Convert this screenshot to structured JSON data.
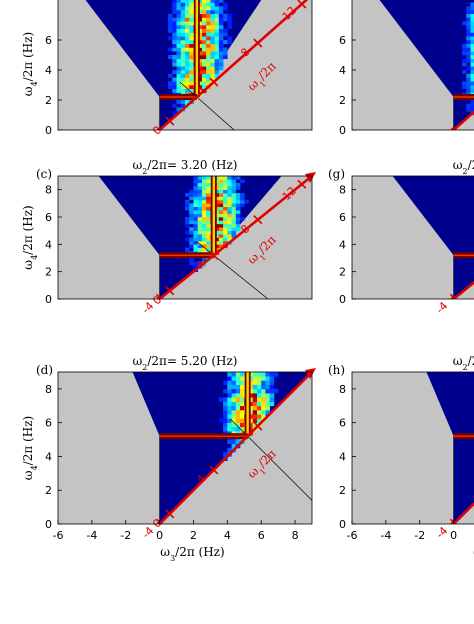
{
  "chart_data": [
    {
      "type": "heatmap",
      "panel": "",
      "title": "",
      "ylabel": "ω4/2π (Hz)",
      "xlabel": "",
      "x_ticks": [],
      "y_ticks": [
        "0",
        "2",
        "4",
        "6"
      ],
      "xlim": [
        -6,
        9
      ],
      "ylim": [
        0,
        9
      ],
      "diag_ticks": [
        "0",
        "4",
        "8",
        "12"
      ],
      "diag_label": "ω1/2π",
      "peak_omega2": 2.2,
      "visible_fraction": [
        0.0,
        0.6
      ]
    },
    {
      "type": "heatmap",
      "panel": "(c)",
      "title": "ω2/2π= 3.20 (Hz)",
      "ylabel": "ω4/2π (Hz)",
      "xlabel": "",
      "x_ticks": [],
      "y_ticks": [
        "0",
        "2",
        "4",
        "6",
        "8"
      ],
      "xlim": [
        -6,
        9
      ],
      "ylim": [
        0,
        9
      ],
      "diag_ticks": [
        "-4",
        "0",
        "4",
        "8",
        "12"
      ],
      "diag_label": "ω1/2π",
      "peak_omega2": 3.2
    },
    {
      "type": "heatmap",
      "panel": "(d)",
      "title": "ω2/2π= 5.20 (Hz)",
      "ylabel": "ω4/2π (Hz)",
      "xlabel": "ω3/2π (Hz)",
      "x_ticks": [
        "-6",
        "-4",
        "-2",
        "0",
        "2",
        "4",
        "6",
        "8"
      ],
      "y_ticks": [
        "0",
        "2",
        "4",
        "6",
        "8"
      ],
      "xlim": [
        -6,
        9
      ],
      "ylim": [
        0,
        9
      ],
      "diag_ticks": [
        "-4",
        "0",
        "4",
        "8"
      ],
      "diag_label": "ω1/2π",
      "peak_omega2": 5.2
    },
    {
      "type": "heatmap",
      "panel": "",
      "title": "",
      "y_ticks": [
        "0",
        "2",
        "4",
        "6"
      ],
      "peak_omega2": 2.2
    },
    {
      "type": "heatmap",
      "panel": "(g)",
      "title": "ω2/2π=",
      "y_ticks": [
        "0",
        "2",
        "4",
        "6",
        "8"
      ],
      "diag_ticks": [
        "-4"
      ],
      "peak_omega2": 3.2
    },
    {
      "type": "heatmap",
      "panel": "(h)",
      "title": "ω2/2π=",
      "xlabel": "ω3/2",
      "x_ticks": [
        "-6",
        "-4",
        "-2",
        "0"
      ],
      "y_ticks": [
        "0",
        "2",
        "4",
        "6",
        "8"
      ],
      "diag_ticks": [
        "-4"
      ],
      "peak_omega2": 5.2
    }
  ],
  "colors": {
    "background_gray": "#c4c4c4",
    "field_blue": "#00008f",
    "axis_red": "#e00000",
    "ridge_dark": "#7a0000"
  }
}
